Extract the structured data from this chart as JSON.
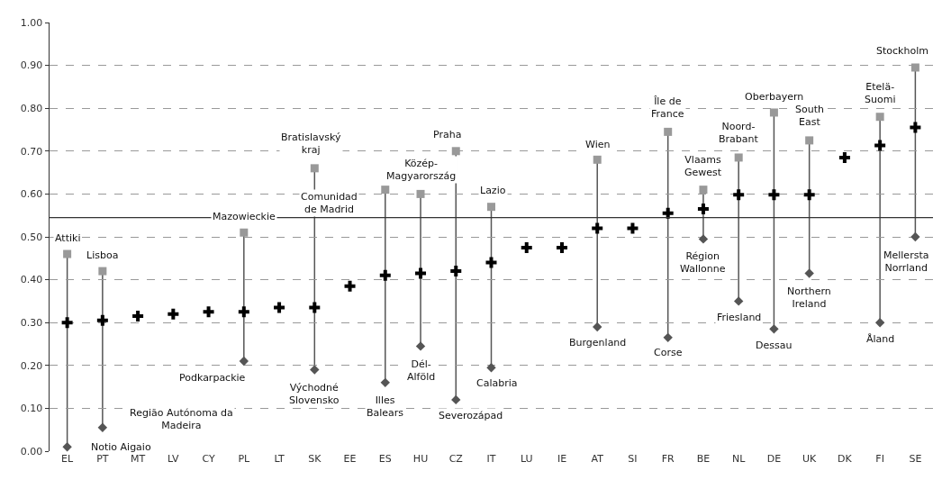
{
  "chart_data": {
    "type": "scatter",
    "categories": [
      "EL",
      "PT",
      "MT",
      "LV",
      "CY",
      "PL",
      "LT",
      "SK",
      "EE",
      "ES",
      "HU",
      "CZ",
      "IT",
      "LU",
      "IE",
      "AT",
      "SI",
      "FR",
      "BE",
      "NL",
      "DE",
      "UK",
      "DK",
      "FI",
      "SE"
    ],
    "series": [
      {
        "color": "#000000",
        "marker": "cross",
        "values": [
          0.3,
          0.305,
          0.315,
          0.32,
          0.325,
          0.325,
          0.335,
          0.335,
          0.385,
          0.41,
          0.415,
          0.42,
          0.44,
          0.475,
          0.475,
          0.52,
          0.52,
          0.555,
          0.565,
          0.598,
          0.598,
          0.598,
          0.685,
          0.713,
          0.755
        ]
      },
      {
        "color": "#999999",
        "marker": "square",
        "values": [
          0.46,
          0.42,
          null,
          null,
          null,
          0.51,
          null,
          0.66,
          null,
          0.61,
          0.6,
          0.7,
          0.57,
          null,
          null,
          0.68,
          null,
          0.745,
          0.61,
          0.685,
          0.79,
          0.725,
          null,
          0.78,
          0.895
        ]
      },
      {
        "color": "#555555",
        "marker": "diamond",
        "values": [
          0.01,
          0.055,
          null,
          null,
          null,
          0.21,
          null,
          0.19,
          null,
          0.16,
          0.245,
          0.12,
          0.195,
          null,
          null,
          0.29,
          null,
          0.265,
          0.495,
          0.35,
          0.285,
          0.415,
          null,
          0.3,
          0.5
        ]
      }
    ],
    "ylim": [
      0,
      1
    ],
    "yticks": [
      {
        "value": 0,
        "label": "0.00"
      },
      {
        "value": 0.1,
        "label": "0.10"
      },
      {
        "value": 0.2,
        "label": "0.20"
      },
      {
        "value": 0.3,
        "label": "0.30"
      },
      {
        "value": 0.4,
        "label": "0.40"
      },
      {
        "value": 0.5,
        "label": "0.50"
      },
      {
        "value": 0.6,
        "label": "0.60"
      },
      {
        "value": 0.7,
        "label": "0.70"
      },
      {
        "value": 0.8,
        "label": "0.80"
      },
      {
        "value": 0.9,
        "label": "0.90"
      },
      {
        "value": 1,
        "label": "1.00"
      }
    ],
    "grid": "y",
    "ref_lines": [
      {
        "axis": "y",
        "value": 0.545,
        "color": "#333333"
      }
    ],
    "annotations": [
      {
        "text": "Attiki",
        "x": "EL",
        "y": 0.46
      },
      {
        "text": "Lisboa",
        "x": "PT",
        "y": 0.42
      },
      {
        "text": "Mazowieckie",
        "x": "PL",
        "y": 0.51
      },
      {
        "text": "Bratislavský\nkraj",
        "x": "SK",
        "y": 0.66
      },
      {
        "text": "Comunidad\nde Madrid",
        "x": "ES",
        "y": 0.61
      },
      {
        "text": "Közép-\nMagyarország",
        "x": "HU",
        "y": 0.6
      },
      {
        "text": "Praha",
        "x": "CZ",
        "y": 0.7
      },
      {
        "text": "Lazio",
        "x": "IT",
        "y": 0.57
      },
      {
        "text": "Wien",
        "x": "AT",
        "y": 0.68
      },
      {
        "text": "Île de\nFrance",
        "x": "FR",
        "y": 0.745
      },
      {
        "text": "Vlaams\nGewest",
        "x": "BE",
        "y": 0.61
      },
      {
        "text": "Noord-\nBrabant",
        "x": "NL",
        "y": 0.685
      },
      {
        "text": "Oberbayern",
        "x": "DE",
        "y": 0.79
      },
      {
        "text": "South\nEast",
        "x": "UK",
        "y": 0.725
      },
      {
        "text": "Etelä-\nSuomi",
        "x": "FI",
        "y": 0.78
      },
      {
        "text": "Stockholm",
        "x": "SE",
        "y": 0.895
      },
      {
        "text": "Notio Aigaio",
        "x": "EL",
        "y": 0.01
      },
      {
        "text": "Região Autónoma da\nMadeira",
        "x": "PT",
        "y": 0.055
      },
      {
        "text": "Podkarpackie",
        "x": "PL",
        "y": 0.21
      },
      {
        "text": "Východné\nSlovensko",
        "x": "SK",
        "y": 0.19
      },
      {
        "text": "Illes\nBalears",
        "x": "ES",
        "y": 0.16
      },
      {
        "text": "Dél-\nAlföld",
        "x": "HU",
        "y": 0.245
      },
      {
        "text": "Severozápad",
        "x": "CZ",
        "y": 0.12
      },
      {
        "text": "Calabria",
        "x": "IT",
        "y": 0.195
      },
      {
        "text": "Burgenland",
        "x": "AT",
        "y": 0.29
      },
      {
        "text": "Corse",
        "x": "FR",
        "y": 0.265
      },
      {
        "text": "Région\nWallonne",
        "x": "BE",
        "y": 0.495
      },
      {
        "text": "Friesland",
        "x": "NL",
        "y": 0.35
      },
      {
        "text": "Northern\nIreland",
        "x": "UK",
        "y": 0.415
      },
      {
        "text": "Dessau",
        "x": "DE",
        "y": 0.285
      },
      {
        "text": "Åland",
        "x": "FI",
        "y": 0.3
      },
      {
        "text": "Mellersta\nNorrland",
        "x": "SE",
        "y": 0.5
      }
    ]
  }
}
